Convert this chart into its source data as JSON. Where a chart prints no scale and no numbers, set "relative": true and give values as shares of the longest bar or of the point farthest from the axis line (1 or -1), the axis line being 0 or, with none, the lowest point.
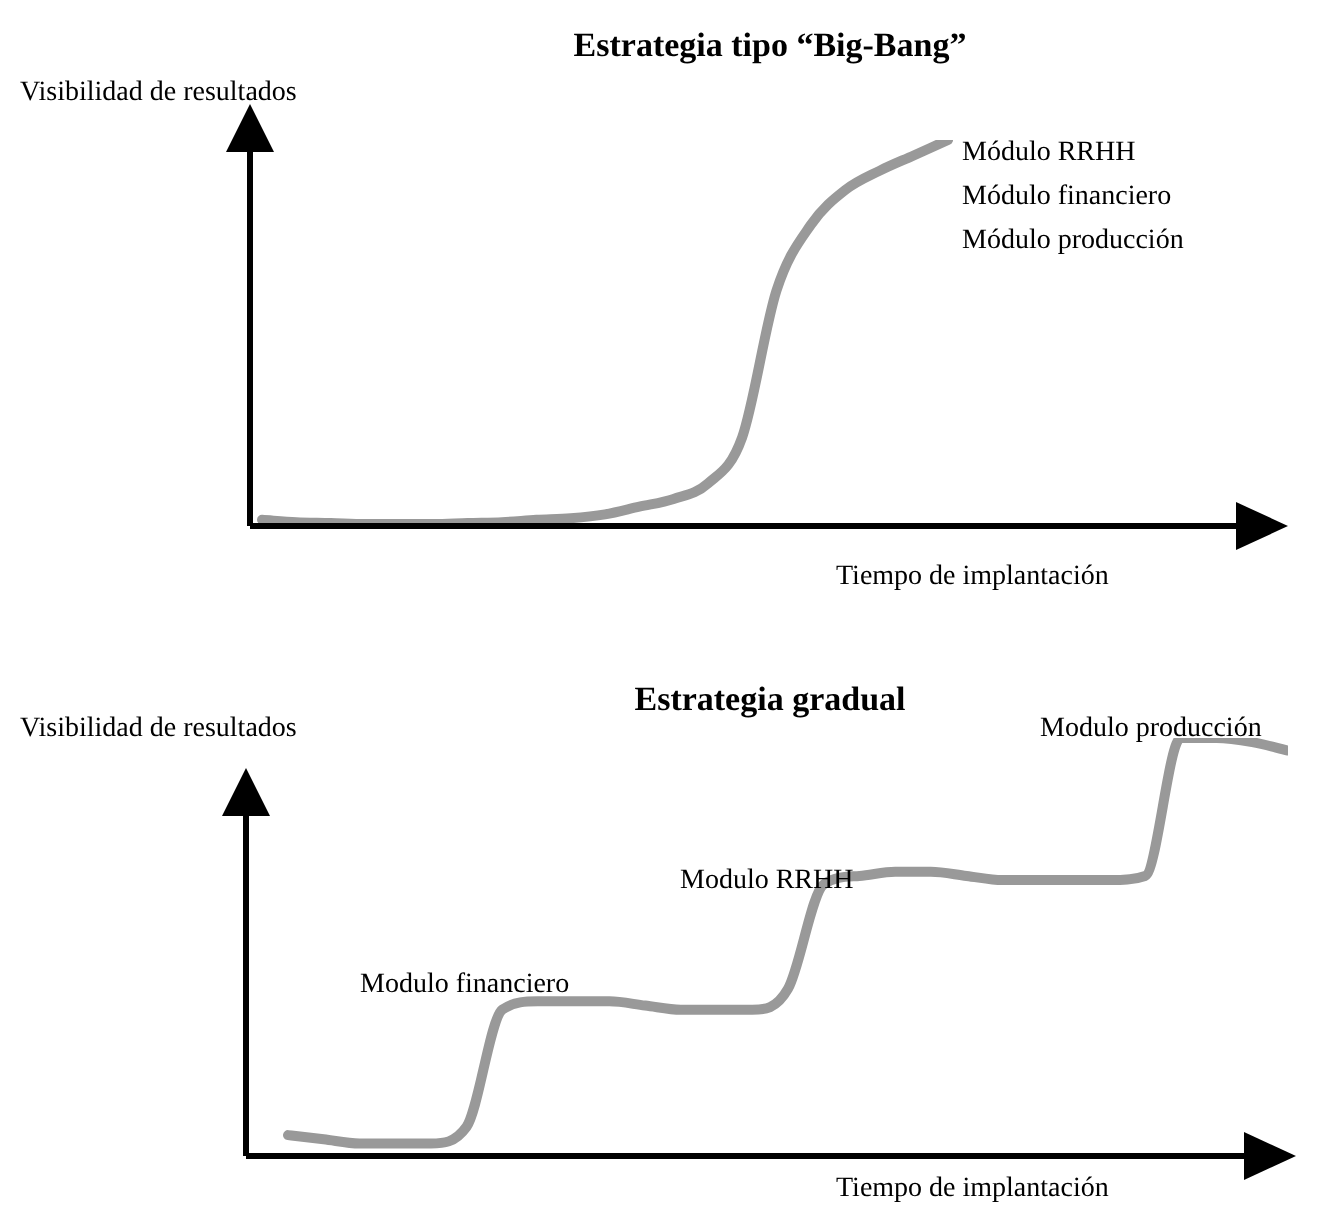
{
  "chart_data": [
    {
      "type": "line",
      "title": "Estrategia tipo “Big-Bang”",
      "xlabel": "Tiempo de implantación",
      "ylabel": "Visibilidad de resultados",
      "relative": true,
      "categories": [
        null,
        null,
        null,
        null,
        null,
        null,
        null,
        null,
        null,
        null,
        null,
        null,
        null,
        null,
        null,
        null,
        null,
        null,
        null,
        null,
        null
      ],
      "series": [
        {
          "color": "#999999",
          "values": [
            0.016,
            0.01,
            0.008,
            0.005,
            0.005,
            0.005,
            0.008,
            0.01,
            0.016,
            0.02,
            0.03,
            0.05,
            0.07,
            0.11,
            0.23,
            0.61,
            0.78,
            0.87,
            0.92,
            0.96,
            1
          ]
        }
      ],
      "annotations": [
        "Módulo RRHH",
        "Módulo financiero",
        "Módulo producción"
      ]
    },
    {
      "type": "line",
      "title": "Estrategia gradual",
      "xlabel": "Tiempo de implantación",
      "ylabel": "Visibilidad de resultados",
      "relative": true,
      "categories": [
        null,
        null,
        null,
        null,
        null,
        null,
        null,
        null,
        null,
        null,
        null,
        null,
        null,
        null,
        null,
        null,
        null,
        null,
        null,
        null,
        null,
        null,
        null,
        null,
        null,
        null,
        null,
        null,
        null
      ],
      "series": [
        {
          "color": "#999999",
          "values": [
            0.05,
            0.04,
            0.03,
            0.03,
            0.03,
            0.07,
            0.35,
            0.37,
            0.37,
            0.37,
            0.36,
            0.35,
            0.35,
            0.35,
            0.4,
            0.65,
            0.67,
            0.68,
            0.68,
            0.67,
            0.66,
            0.66,
            0.66,
            0.66,
            0.67,
            1,
            1,
            0.99,
            0.97
          ]
        }
      ],
      "annotations": [
        "Modulo financiero",
        "Modulo RRHH",
        "Modulo producción"
      ]
    }
  ]
}
